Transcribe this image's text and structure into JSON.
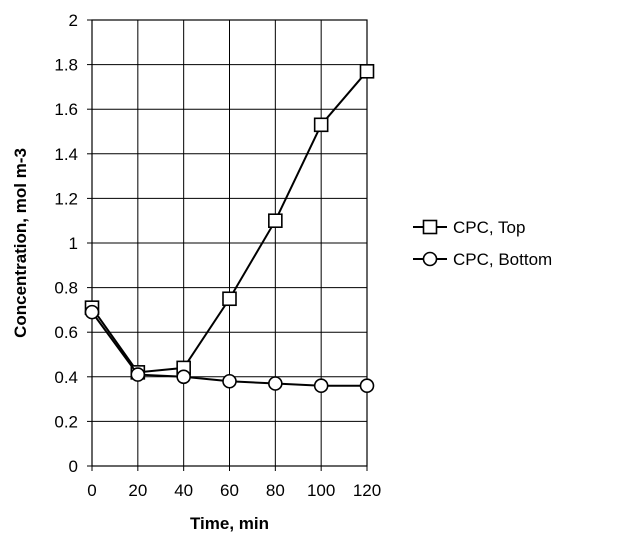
{
  "chart_data": {
    "type": "line",
    "title": "",
    "xlabel": "Time, min",
    "ylabel": "Concentration, mol m-3",
    "x": [
      0,
      20,
      40,
      60,
      80,
      100,
      120
    ],
    "xlim": [
      0,
      120
    ],
    "ylim": [
      0,
      2
    ],
    "xticks": [
      0,
      20,
      40,
      60,
      80,
      100,
      120
    ],
    "yticks": [
      0,
      0.2,
      0.4,
      0.6,
      0.8,
      1,
      1.2,
      1.4,
      1.6,
      1.8,
      2
    ],
    "xtick_labels": [
      "0",
      "20",
      "40",
      "60",
      "80",
      "100",
      "120"
    ],
    "ytick_labels": [
      "0",
      "0.2",
      "0.4",
      "0.6",
      "0.8",
      "1",
      "1.2",
      "1.4",
      "1.6",
      "1.8",
      "2"
    ],
    "grid": true,
    "legend": "right",
    "series": [
      {
        "name": "CPC, Top",
        "marker": "square",
        "color": "#000000",
        "values": [
          0.71,
          0.42,
          0.44,
          0.75,
          1.1,
          1.53,
          1.77
        ]
      },
      {
        "name": "CPC, Bottom",
        "marker": "circle",
        "color": "#000000",
        "values": [
          0.69,
          0.41,
          0.4,
          0.38,
          0.37,
          0.36,
          0.36
        ]
      }
    ]
  }
}
